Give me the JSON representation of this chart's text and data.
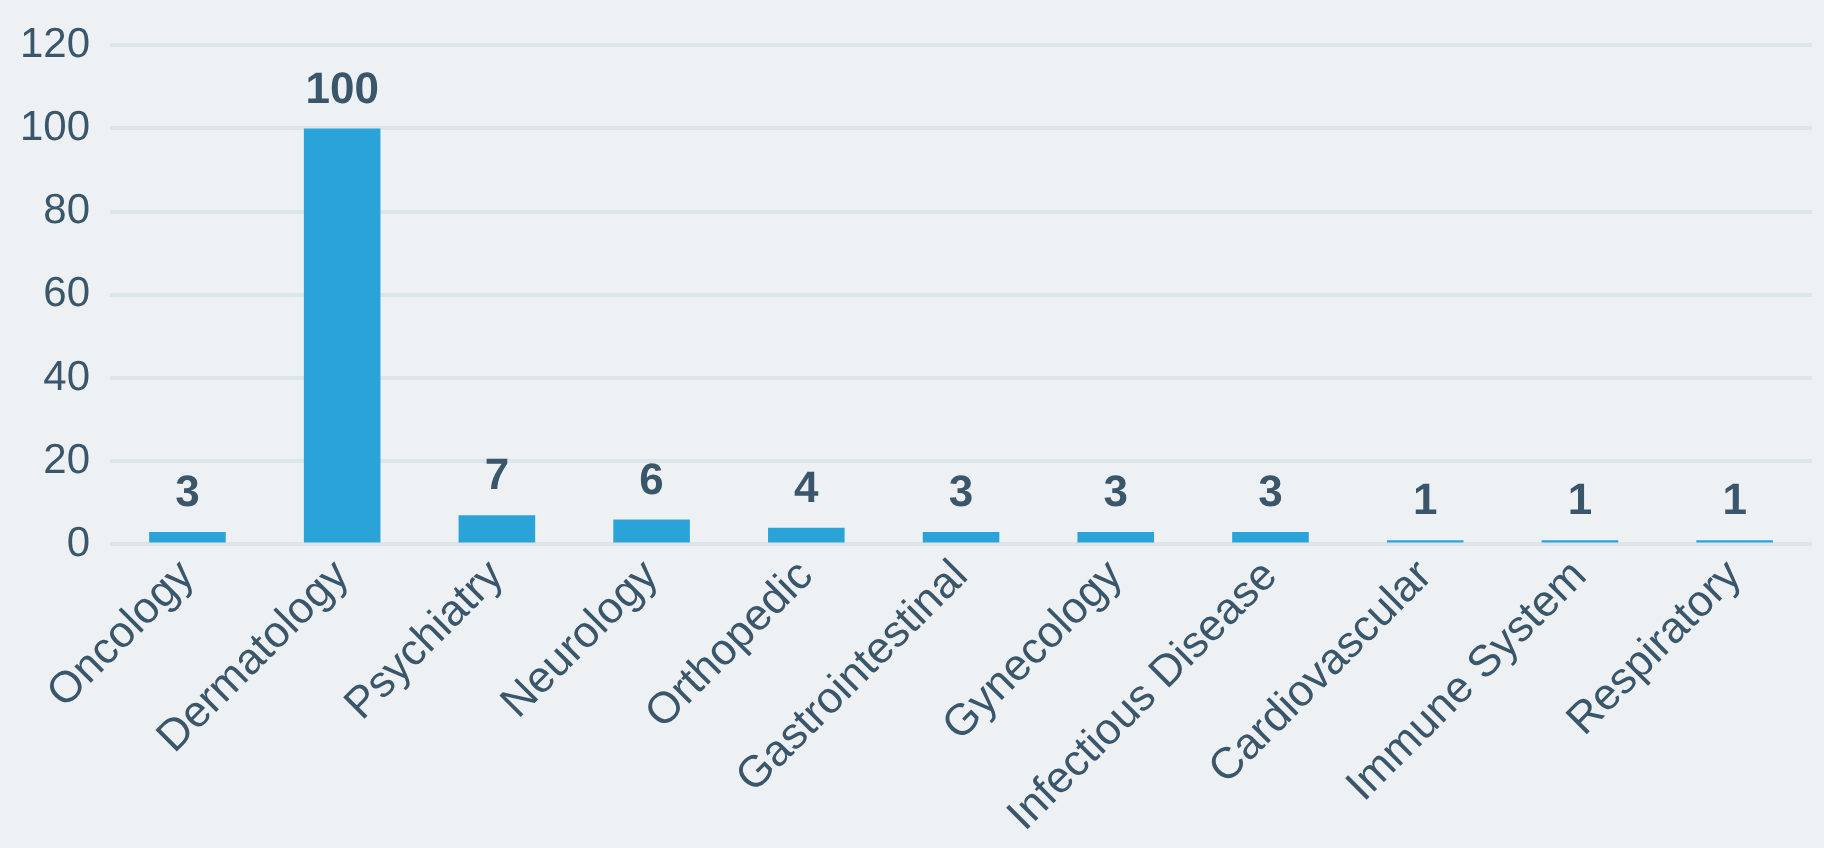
{
  "chart_data": {
    "type": "bar",
    "categories": [
      "Oncology",
      "Dermatology",
      "Psychiatry",
      "Neurology",
      "Orthopedic",
      "Gastrointestinal",
      "Gynecology",
      "Infectious Disease",
      "Cardiovascular",
      "Immune System",
      "Respiratory"
    ],
    "values": [
      3,
      100,
      7,
      6,
      4,
      3,
      3,
      3,
      1,
      1,
      1
    ],
    "color": "#2aa3d9",
    "ylim": [
      0,
      120
    ],
    "yticks": [
      0,
      20,
      40,
      60,
      80,
      100,
      120
    ],
    "grid": "y",
    "data_labels": true
  }
}
